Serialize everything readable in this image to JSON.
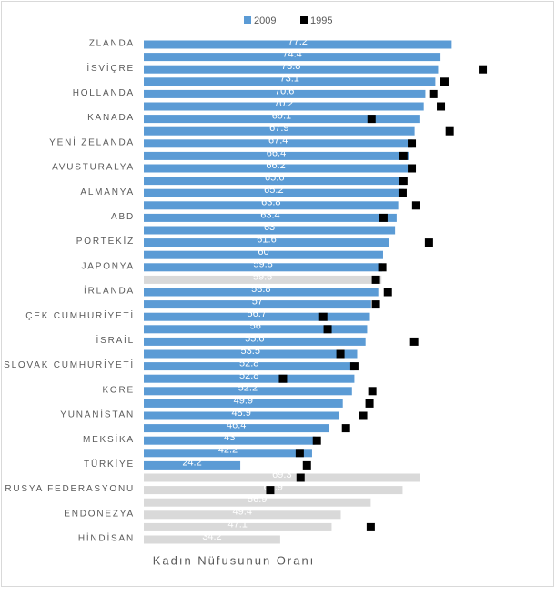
{
  "chart_data": {
    "type": "hbar_dot",
    "xlabel": "Kadın Nüfusunun Oranı",
    "categories": [
      "İZLANDA",
      null,
      "İSVİÇRE",
      null,
      "HOLLANDA",
      null,
      "KANADA",
      null,
      "YENİ ZELANDA",
      null,
      "AVUSTURALYA",
      null,
      "ALMANYA",
      null,
      "ABD",
      null,
      "PORTEKİZ",
      null,
      "JAPONYA",
      null,
      "İRLANDA",
      null,
      "ÇEK CUMHURİYETİ",
      null,
      "İSRAİL",
      null,
      "SLOVAK CUMHURİYETİ",
      null,
      "KORE",
      null,
      "YUNANİSTAN",
      null,
      "MEKSİKA",
      null,
      "TÜRKİYE",
      null,
      "RUSYA FEDERASYONU",
      null,
      "ENDONEZYA",
      null,
      "HİNDİSAN"
    ],
    "series": [
      {
        "name": "2009",
        "color": "#5b9bd5",
        "values": [
          77.2,
          74.4,
          73.8,
          73.1,
          70.6,
          70.2,
          69.1,
          67.9,
          67.4,
          66.4,
          66.2,
          65.6,
          65.2,
          63.8,
          63.4,
          63,
          61.6,
          60,
          59.8,
          59.6,
          58.8,
          57,
          56.7,
          56,
          55.6,
          53.5,
          52.8,
          52.8,
          52.2,
          49.9,
          48.9,
          46.4,
          43,
          42.2,
          24.2,
          69.3,
          64.9,
          56.9,
          49.4,
          47.1,
          34.2
        ],
        "colors": [
          "#5b9bd5",
          "#5b9bd5",
          "#5b9bd5",
          "#5b9bd5",
          "#5b9bd5",
          "#5b9bd5",
          "#5b9bd5",
          "#5b9bd5",
          "#5b9bd5",
          "#5b9bd5",
          "#5b9bd5",
          "#5b9bd5",
          "#5b9bd5",
          "#5b9bd5",
          "#5b9bd5",
          "#5b9bd5",
          "#5b9bd5",
          "#5b9bd5",
          "#5b9bd5",
          "#d9d9d9",
          "#5b9bd5",
          "#5b9bd5",
          "#5b9bd5",
          "#5b9bd5",
          "#5b9bd5",
          "#5b9bd5",
          "#5b9bd5",
          "#5b9bd5",
          "#5b9bd5",
          "#5b9bd5",
          "#5b9bd5",
          "#5b9bd5",
          "#5b9bd5",
          "#5b9bd5",
          "#5b9bd5",
          "#d9d9d9",
          "#d9d9d9",
          "#d9d9d9",
          "#d9d9d9",
          "#d9d9d9",
          "#d9d9d9"
        ]
      },
      {
        "name": "1995",
        "color": "#000000",
        "values": [
          null,
          null,
          85.0,
          75.4,
          72.6,
          74.5,
          57.1,
          76.7,
          67.2,
          65.1,
          67.2,
          65.1,
          64.9,
          68.3,
          60.1,
          null,
          71.5,
          null,
          59.8,
          58.2,
          61.2,
          58.2,
          45.0,
          46.1,
          67.8,
          49.3,
          52.8,
          34.9,
          57.3,
          56.6,
          55.0,
          50.7,
          43.4,
          39.1,
          40.9,
          39.3,
          31.7,
          null,
          null,
          56.9,
          null
        ]
      }
    ],
    "xlim": [
      0,
      94
    ]
  }
}
